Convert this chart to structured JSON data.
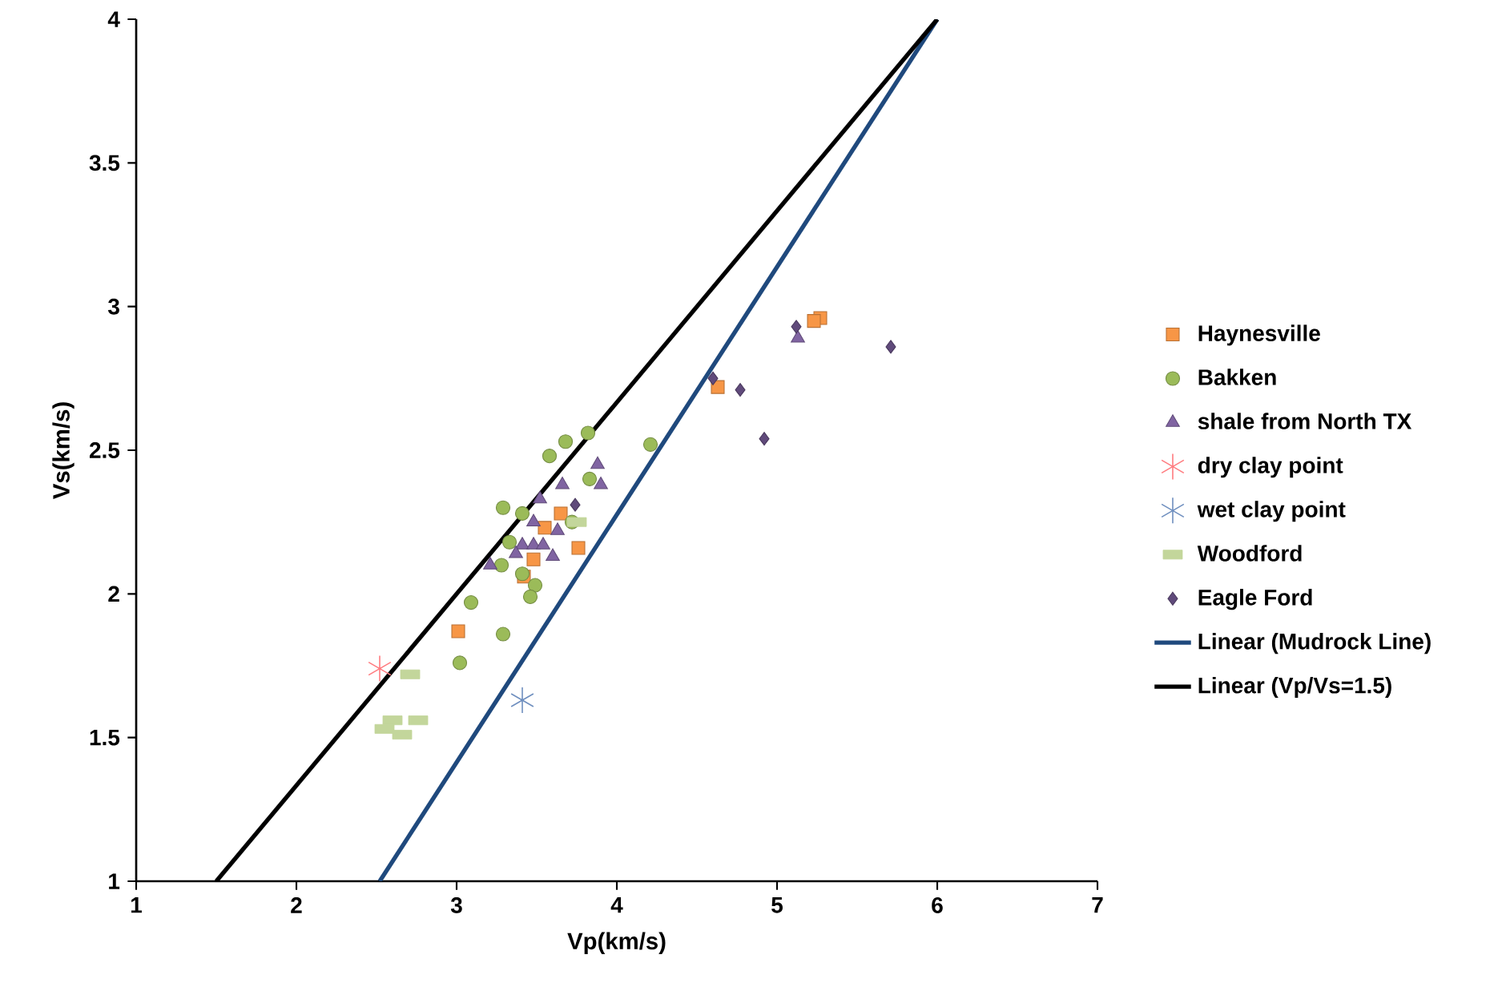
{
  "chart_data": {
    "type": "scatter",
    "xlabel": "Vp(km/s)",
    "ylabel": "Vs(km/s)",
    "xlim": [
      1,
      7
    ],
    "ylim": [
      1,
      4
    ],
    "xticks": [
      1,
      2,
      3,
      4,
      5,
      6,
      7
    ],
    "yticks": [
      1,
      1.5,
      2,
      2.5,
      3,
      3.5,
      4
    ],
    "legend": "right",
    "series": [
      {
        "name": "Haynesville",
        "color": "#f79646",
        "marker": "square",
        "x": [
          3.65,
          3.55,
          3.76,
          3.48,
          3.42,
          3.01,
          5.27,
          5.23,
          4.63
        ],
        "values": [
          2.28,
          2.23,
          2.16,
          2.12,
          2.06,
          1.87,
          2.96,
          2.95,
          2.72
        ]
      },
      {
        "name": "Bakken",
        "color": "#9bbb59",
        "marker": "circle",
        "x": [
          3.82,
          3.68,
          3.58,
          4.21,
          3.83,
          3.29,
          3.41,
          3.72,
          3.33,
          3.28,
          3.41,
          3.49,
          3.46,
          3.09,
          3.29,
          3.02
        ],
        "values": [
          2.56,
          2.53,
          2.48,
          2.52,
          2.4,
          2.3,
          2.28,
          2.25,
          2.18,
          2.1,
          2.07,
          2.03,
          1.99,
          1.97,
          1.86,
          1.76
        ]
      },
      {
        "name": "shale from North TX",
        "color": "#8064a2",
        "marker": "triangle",
        "x": [
          3.88,
          3.66,
          3.9,
          3.52,
          3.48,
          3.63,
          3.41,
          3.48,
          3.54,
          3.37,
          3.6,
          3.21,
          5.13
        ],
        "values": [
          2.45,
          2.38,
          2.38,
          2.33,
          2.25,
          2.22,
          2.17,
          2.17,
          2.17,
          2.14,
          2.13,
          2.1,
          2.89
        ]
      },
      {
        "name": "dry clay point",
        "color": "#ff7c80",
        "marker": "cross",
        "x": [
          2.52
        ],
        "values": [
          1.74
        ]
      },
      {
        "name": "wet clay point",
        "color": "#6f8fbf",
        "marker": "cross",
        "x": [
          3.41
        ],
        "values": [
          1.63
        ]
      },
      {
        "name": "Woodford",
        "color": "#c3d69b",
        "marker": "square",
        "x": [
          3.75,
          2.71,
          2.6,
          2.76,
          2.55,
          2.66
        ],
        "values": [
          2.25,
          1.72,
          1.56,
          1.56,
          1.53,
          1.51
        ]
      },
      {
        "name": "Eagle Ford",
        "color": "#604a7b",
        "marker": "diamond",
        "x": [
          3.74,
          5.12,
          5.71,
          4.6,
          4.77,
          4.92
        ],
        "values": [
          2.31,
          2.93,
          2.86,
          2.75,
          2.71,
          2.54
        ]
      },
      {
        "name": "Linear (Mudrock Line)",
        "color": "#1f497d",
        "type": "line",
        "marker": "none",
        "x": [
          2.52,
          6
        ],
        "values": [
          1,
          4
        ]
      },
      {
        "name": "Linear (Vp/Vs=1.5)",
        "color": "#000000",
        "type": "line",
        "marker": "none",
        "x": [
          1.5,
          6
        ],
        "values": [
          1,
          4
        ]
      }
    ]
  }
}
